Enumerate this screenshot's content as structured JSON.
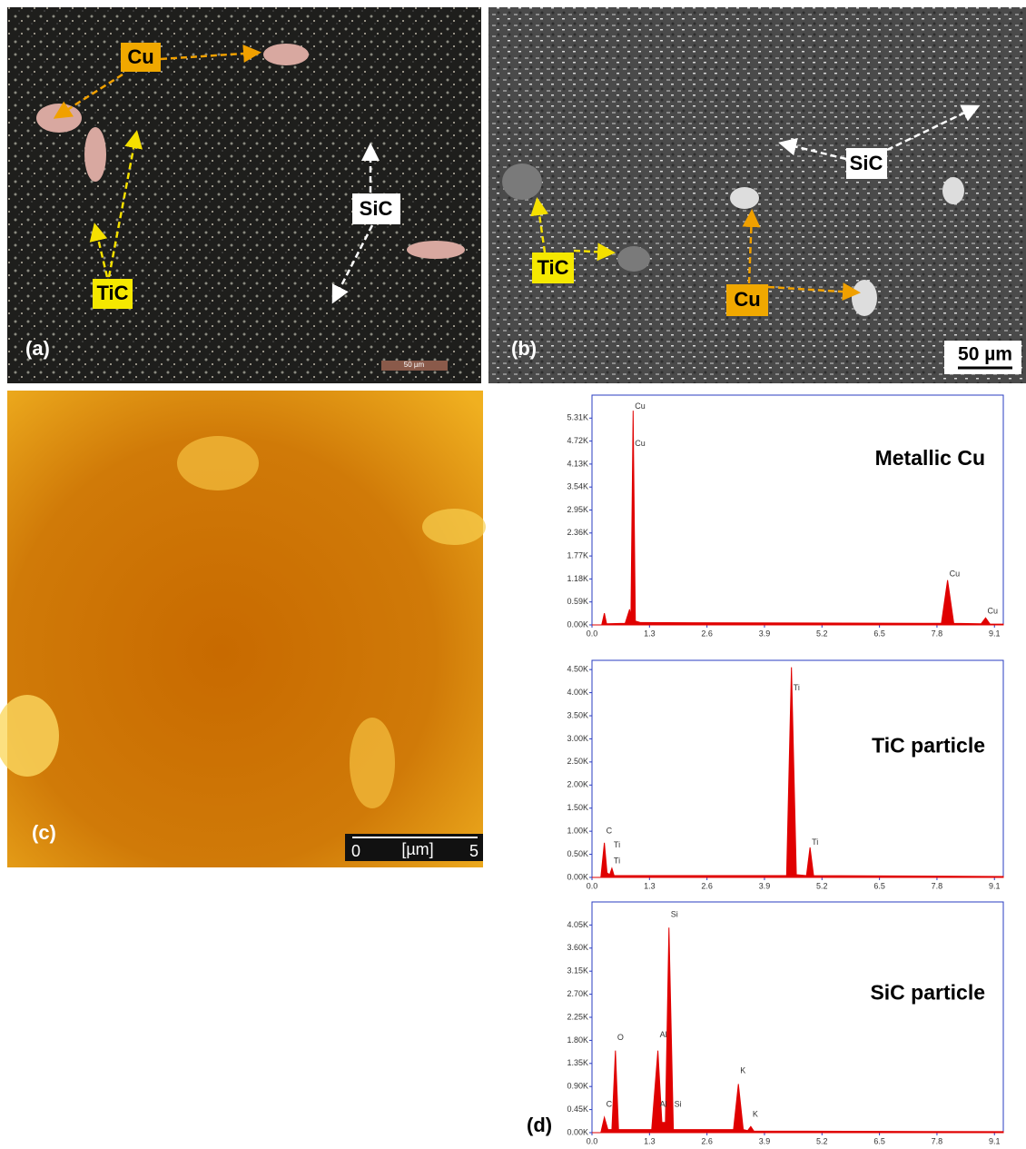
{
  "panels": {
    "a": {
      "label": "(a)",
      "annotations": [
        "Cu",
        "TiC",
        "SiC"
      ],
      "scale_bar": "50 µm"
    },
    "b": {
      "label": "(b)",
      "annotations": [
        "SiC",
        "TiC",
        "Cu"
      ],
      "scale_bar": "50 µm"
    },
    "c": {
      "label": "(c)",
      "scale_bar": [
        "0",
        "[µm]",
        "5"
      ]
    },
    "d": {
      "label": "(d)"
    }
  },
  "chart_data": [
    {
      "type": "area",
      "title": "Metallic Cu",
      "color": "#e00000",
      "x": [
        0,
        0.22,
        0.28,
        0.33,
        0.75,
        0.85,
        0.88,
        0.93,
        0.98,
        1.1,
        7.9,
        8.04,
        8.18,
        8.8,
        8.9,
        9.0,
        9.3
      ],
      "values": [
        0,
        0,
        300,
        30,
        40,
        400,
        200,
        5500,
        100,
        60,
        40,
        1150,
        40,
        30,
        180,
        20,
        20
      ],
      "xlim": [
        0,
        9.3
      ],
      "xticks": [
        {
          "value": 0,
          "label": "0.0"
        },
        1.3,
        2.6,
        3.9,
        5.2,
        6.5,
        7.8,
        9.1
      ],
      "ylim": [
        0,
        5900
      ],
      "yticks": [
        {
          "value": 0,
          "label": "0.00K"
        },
        {
          "value": 590,
          "label": "0.59K"
        },
        {
          "value": 1180,
          "label": "1.18K"
        },
        {
          "value": 1770,
          "label": "1.77K"
        },
        {
          "value": 2360,
          "label": "2.36K"
        },
        {
          "value": 2950,
          "label": "2.95K"
        },
        {
          "value": 3540,
          "label": "3.54K"
        },
        {
          "value": 4130,
          "label": "4.13K"
        },
        {
          "value": 4720,
          "label": "4.72K"
        },
        {
          "value": 5310,
          "label": "5.31K"
        }
      ],
      "peak_labels": [
        {
          "text": "Cu",
          "x": 0.93,
          "y": 5600
        },
        {
          "text": "Cu",
          "x": 0.93,
          "y": 4650
        },
        {
          "text": "Cu",
          "x": 8.04,
          "y": 1300
        },
        {
          "text": "Cu",
          "x": 8.9,
          "y": 350
        }
      ]
    },
    {
      "type": "area",
      "title": "TiC particle",
      "color": "#e00000",
      "x": [
        0,
        0.2,
        0.28,
        0.34,
        0.4,
        0.45,
        0.5,
        1.0,
        4.4,
        4.51,
        4.62,
        4.85,
        4.93,
        5.01,
        9.3
      ],
      "values": [
        0,
        0,
        750,
        100,
        60,
        200,
        40,
        40,
        40,
        4550,
        60,
        40,
        650,
        40,
        20
      ],
      "xlim": [
        0,
        9.3
      ],
      "xticks": [
        {
          "value": 0,
          "label": "0.0"
        },
        1.3,
        2.6,
        3.9,
        5.2,
        6.5,
        7.8,
        9.1
      ],
      "ylim": [
        0,
        4700
      ],
      "yticks": [
        {
          "value": 0,
          "label": "0.00K"
        },
        {
          "value": 500,
          "label": "0.50K"
        },
        {
          "value": 1000,
          "label": "1.00K"
        },
        {
          "value": 1500,
          "label": "1.50K"
        },
        {
          "value": 2000,
          "label": "2.00K"
        },
        {
          "value": 2500,
          "label": "2.50K"
        },
        {
          "value": 3000,
          "label": "3.00K"
        },
        {
          "value": 3500,
          "label": "3.50K"
        },
        {
          "value": 4000,
          "label": "4.00K"
        },
        {
          "value": 4500,
          "label": "4.50K"
        }
      ],
      "peak_labels": [
        {
          "text": "C",
          "x": 0.28,
          "y": 1000
        },
        {
          "text": "Ti",
          "x": 0.45,
          "y": 700
        },
        {
          "text": "Ti",
          "x": 0.45,
          "y": 350
        },
        {
          "text": "Ti",
          "x": 4.51,
          "y": 4100
        },
        {
          "text": "Ti",
          "x": 4.93,
          "y": 750
        }
      ]
    },
    {
      "type": "area",
      "title": "SiC particle",
      "color": "#e00000",
      "x": [
        0,
        0.2,
        0.28,
        0.36,
        0.45,
        0.53,
        0.6,
        1.35,
        1.49,
        1.58,
        1.66,
        1.74,
        1.84,
        3.2,
        3.31,
        3.42,
        3.52,
        3.59,
        3.66,
        9.3
      ],
      "values": [
        0,
        0,
        300,
        60,
        60,
        1600,
        60,
        60,
        1600,
        200,
        200,
        4000,
        60,
        60,
        950,
        60,
        40,
        120,
        30,
        20
      ],
      "xlim": [
        0,
        9.3
      ],
      "xticks": [
        {
          "value": 0,
          "label": "0.0"
        },
        1.3,
        2.6,
        3.9,
        5.2,
        6.5,
        7.8,
        9.1
      ],
      "ylim": [
        0,
        4500
      ],
      "yticks": [
        {
          "value": 0,
          "label": "0.00K"
        },
        {
          "value": 450,
          "label": "0.45K"
        },
        {
          "value": 900,
          "label": "0.90K"
        },
        {
          "value": 1350,
          "label": "1.35K"
        },
        {
          "value": 1800,
          "label": "1.80K"
        },
        {
          "value": 2250,
          "label": "2.25K"
        },
        {
          "value": 2700,
          "label": "2.70K"
        },
        {
          "value": 3150,
          "label": "3.15K"
        },
        {
          "value": 3600,
          "label": "3.60K"
        },
        {
          "value": 4050,
          "label": "4.05K"
        }
      ],
      "peak_labels": [
        {
          "text": "C",
          "x": 0.28,
          "y": 550
        },
        {
          "text": "O",
          "x": 0.53,
          "y": 1850
        },
        {
          "text": "Al",
          "x": 1.49,
          "y": 1900
        },
        {
          "text": "Al",
          "x": 1.49,
          "y": 550
        },
        {
          "text": "Si",
          "x": 1.74,
          "y": 4250
        },
        {
          "text": "Si",
          "x": 1.82,
          "y": 550
        },
        {
          "text": "K",
          "x": 3.31,
          "y": 1200
        },
        {
          "text": "K",
          "x": 3.59,
          "y": 350
        }
      ]
    }
  ]
}
